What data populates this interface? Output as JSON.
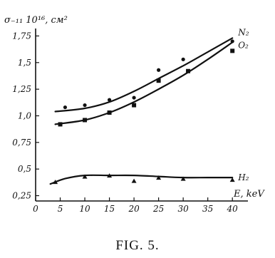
{
  "chart_data": {
    "type": "scatter",
    "ylabel": "σ₋₁₁ 10¹⁶, см²",
    "xlabel": "E, keV",
    "caption": "FIG. 5.",
    "xlim": [
      0,
      42
    ],
    "ylim": [
      0.25,
      1.8
    ],
    "x_ticks": [
      "0",
      "5",
      "10",
      "15",
      "20",
      "25",
      "30",
      "35",
      "40"
    ],
    "x_tick_values": [
      0,
      5,
      10,
      15,
      20,
      25,
      30,
      35,
      40
    ],
    "y_ticks": [
      "0,25",
      "0,5",
      "0,75",
      "1,0",
      "1,25",
      "1,5",
      "1,75"
    ],
    "y_tick_values": [
      0.25,
      0.5,
      0.75,
      1.0,
      1.25,
      1.5,
      1.75
    ],
    "grid": false,
    "series": [
      {
        "name": "N₂",
        "marker": "dot",
        "points": [
          [
            6,
            1.08
          ],
          [
            10,
            1.1
          ],
          [
            15,
            1.15
          ],
          [
            20,
            1.17
          ],
          [
            25,
            1.43
          ],
          [
            30,
            1.53
          ],
          [
            40,
            1.7
          ]
        ],
        "curve": [
          [
            4,
            1.04
          ],
          [
            10,
            1.07
          ],
          [
            15,
            1.13
          ],
          [
            20,
            1.23
          ],
          [
            25,
            1.35
          ],
          [
            30,
            1.47
          ],
          [
            35,
            1.6
          ],
          [
            40,
            1.73
          ]
        ]
      },
      {
        "name": "O₂",
        "marker": "square",
        "points": [
          [
            5,
            0.92
          ],
          [
            10,
            0.96
          ],
          [
            15,
            1.03
          ],
          [
            20,
            1.1
          ],
          [
            25,
            1.33
          ],
          [
            31,
            1.42
          ],
          [
            40,
            1.61
          ]
        ],
        "curve": [
          [
            4,
            0.92
          ],
          [
            10,
            0.96
          ],
          [
            15,
            1.03
          ],
          [
            20,
            1.13
          ],
          [
            25,
            1.25
          ],
          [
            30,
            1.38
          ],
          [
            35,
            1.53
          ],
          [
            40,
            1.69
          ]
        ]
      },
      {
        "name": "H₂",
        "marker": "triangle",
        "points": [
          [
            4,
            0.38
          ],
          [
            10,
            0.43
          ],
          [
            15,
            0.44
          ],
          [
            20,
            0.39
          ],
          [
            25,
            0.42
          ],
          [
            30,
            0.41
          ],
          [
            40,
            0.4
          ]
        ],
        "curve": [
          [
            3,
            0.36
          ],
          [
            6,
            0.41
          ],
          [
            10,
            0.44
          ],
          [
            15,
            0.44
          ],
          [
            20,
            0.44
          ],
          [
            25,
            0.43
          ],
          [
            30,
            0.42
          ],
          [
            35,
            0.42
          ],
          [
            40,
            0.42
          ]
        ]
      }
    ]
  }
}
